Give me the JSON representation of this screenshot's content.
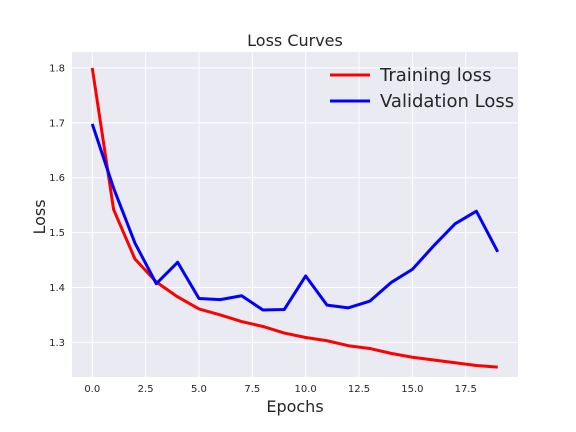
{
  "chart_data": {
    "type": "line",
    "title": "Loss Curves",
    "xlabel": "Epochs",
    "ylabel": "Loss",
    "xlim": [
      -0.95,
      19.95
    ],
    "ylim": [
      1.237,
      1.829
    ],
    "xticks": [
      0.0,
      2.5,
      5.0,
      7.5,
      10.0,
      12.5,
      15.0,
      17.5
    ],
    "xtick_labels": [
      "0.0",
      "2.5",
      "5.0",
      "7.5",
      "10.0",
      "12.5",
      "15.0",
      "17.5"
    ],
    "yticks": [
      1.3,
      1.4,
      1.5,
      1.6,
      1.7,
      1.8
    ],
    "ytick_labels": [
      "1.3",
      "1.4",
      "1.5",
      "1.6",
      "1.7",
      "1.8"
    ],
    "grid": true,
    "legend_position": "top-right",
    "x": [
      0,
      1,
      2,
      3,
      4,
      5,
      6,
      7,
      8,
      9,
      10,
      11,
      12,
      13,
      14,
      15,
      16,
      17,
      18,
      19
    ],
    "series": [
      {
        "name": "Training loss",
        "color": "#ff0000",
        "values": [
          1.8,
          1.542,
          1.452,
          1.41,
          1.383,
          1.361,
          1.35,
          1.338,
          1.329,
          1.317,
          1.309,
          1.303,
          1.294,
          1.289,
          1.28,
          1.273,
          1.268,
          1.263,
          1.258,
          1.255
        ]
      },
      {
        "name": "Validation Loss",
        "color": "#0000ff",
        "values": [
          1.698,
          1.581,
          1.481,
          1.407,
          1.446,
          1.38,
          1.378,
          1.385,
          1.359,
          1.36,
          1.421,
          1.368,
          1.363,
          1.375,
          1.409,
          1.433,
          1.476,
          1.516,
          1.539,
          1.465
        ]
      }
    ]
  },
  "colors": {
    "plot_background": "#eaeaf2",
    "grid": "#ffffff",
    "text": "#262626"
  }
}
